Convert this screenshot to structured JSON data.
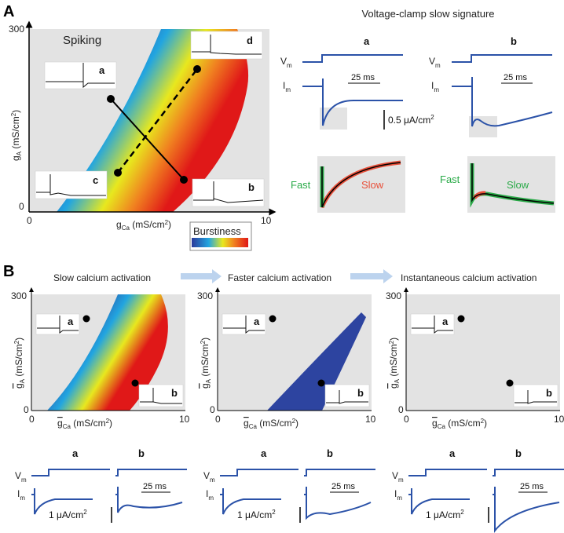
{
  "panel_labels": {
    "A": "A",
    "B": "B"
  },
  "panelA": {
    "region_label": "Spiking",
    "y_axis": {
      "label": "g",
      "sub": "A",
      "unit": " (mS/cm",
      "sup": "2",
      "close": ")",
      "max": "300",
      "min": "0"
    },
    "x_axis": {
      "label": "g",
      "sub": "Ca",
      "unit": " (mS/cm",
      "sup": "2",
      "close": ")",
      "max": "10",
      "min": "0"
    },
    "insets": {
      "a": "a",
      "b": "b",
      "c": "c",
      "d": "d"
    },
    "colorbar": {
      "title": "Burstiness",
      "colors": [
        "#2b3a9a",
        "#22a5e0",
        "#e8e81e",
        "#f08020",
        "#e01818"
      ]
    },
    "voltage_clamp": {
      "title": "Voltage-clamp slow signature",
      "a": "a",
      "b": "b",
      "vm": "V",
      "vm_sub": "m",
      "im": "I",
      "im_sub": "m",
      "time_scale": "25 ms",
      "current_scale": "0.5 μA/cm",
      "current_sup": "2",
      "fast": "Fast",
      "slow": "Slow",
      "colors": {
        "fast": "#2aaa48",
        "slow": "#e8503a",
        "trace": "#2b52a8"
      }
    }
  },
  "panelB": {
    "titles": [
      "Slow calcium activation",
      "Faster calcium activation",
      "Instantaneous calcium activation"
    ],
    "y_axis": {
      "label": "g",
      "sub": "A",
      "unit": " (mS/cm",
      "sup": "2",
      "close": ")",
      "max": "300",
      "min": "0"
    },
    "x_axis": {
      "label": "g",
      "sub": "Ca",
      "unit": " (mS/cm",
      "sup": "2",
      "close": ")",
      "max": "10",
      "min": "0"
    },
    "inset_a": "a",
    "inset_b": "b",
    "traces": {
      "a": "a",
      "b": "b",
      "vm": "V",
      "vm_sub": "m",
      "im": "I",
      "im_sub": "m",
      "time_scale": "25 ms",
      "current_scale": "1 μA/cm",
      "current_sup": "2"
    }
  }
}
